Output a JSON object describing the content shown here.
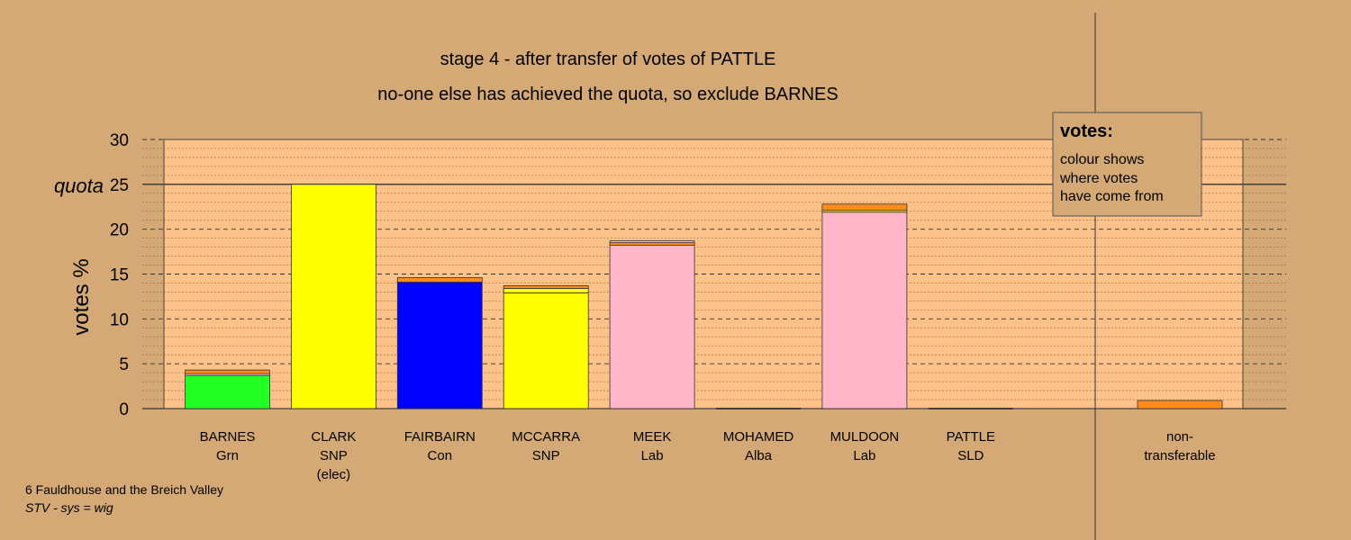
{
  "chart_data": {
    "type": "bar",
    "title": "stage 4 - after transfer of votes of PATTLE",
    "subtitle": "no-one else has achieved the quota, so exclude BARNES",
    "ylabel": "votes %",
    "ylim": [
      0,
      30
    ],
    "yticks": [
      0,
      5,
      10,
      15,
      20,
      25,
      30
    ],
    "quota": {
      "label": "quota",
      "value": 25
    },
    "grid": "dotted minor every 1, dashed major every 5",
    "candidates": [
      {
        "name": "BARNES",
        "party": "Grn",
        "extra": "",
        "segments": [
          {
            "source": "Grn",
            "value": 3.7,
            "color": "#22FF22"
          },
          {
            "source": "Lab",
            "value": 0.2,
            "color": "#FFB6C8"
          },
          {
            "source": "SLD",
            "value": 0.4,
            "color": "#FF8C1A"
          }
        ]
      },
      {
        "name": "CLARK",
        "party": "SNP",
        "extra": "(elec)",
        "segments": [
          {
            "source": "SNP",
            "value": 25.0,
            "color": "#FFFF00"
          }
        ]
      },
      {
        "name": "FAIRBAIRN",
        "party": "Con",
        "extra": "",
        "segments": [
          {
            "source": "Con",
            "value": 14.1,
            "color": "#0000FF"
          },
          {
            "source": "SLD",
            "value": 0.5,
            "color": "#FF8C1A"
          }
        ]
      },
      {
        "name": "MCCARRA",
        "party": "SNP",
        "extra": "",
        "segments": [
          {
            "source": "SNP",
            "value": 12.9,
            "color": "#FFFF00"
          },
          {
            "source": "SNP",
            "value": 0.5,
            "color": "#FFFF00"
          },
          {
            "source": "SLD",
            "value": 0.3,
            "color": "#FF8C1A"
          }
        ]
      },
      {
        "name": "MEEK",
        "party": "Lab",
        "extra": "",
        "segments": [
          {
            "source": "Lab",
            "value": 18.2,
            "color": "#FFB6C8"
          },
          {
            "source": "SLD",
            "value": 0.3,
            "color": "#FF8C1A"
          },
          {
            "source": "Lab",
            "value": 0.2,
            "color": "#FFB6C8"
          }
        ]
      },
      {
        "name": "MOHAMED",
        "party": "Alba",
        "extra": "",
        "segments": []
      },
      {
        "name": "MULDOON",
        "party": "Lab",
        "extra": "",
        "segments": [
          {
            "source": "Lab",
            "value": 21.9,
            "color": "#FFB6C8"
          },
          {
            "source": "SNP",
            "value": 0.2,
            "color": "#FFFF00"
          },
          {
            "source": "SLD",
            "value": 0.7,
            "color": "#FF8C1A"
          }
        ]
      },
      {
        "name": "PATTLE",
        "party": "SLD",
        "extra": "",
        "segments": []
      }
    ],
    "nontransferable": {
      "name": "non-",
      "party": "transferable",
      "extra": "",
      "segments": [
        {
          "source": "SLD",
          "value": 0.9,
          "color": "#FF8C1A"
        }
      ]
    },
    "legend": {
      "title": "votes:",
      "lines": [
        "colour shows",
        "where votes",
        "have come from"
      ],
      "placement": "top-right"
    }
  },
  "footer": {
    "line1": "6 Fauldhouse and the Breich Valley",
    "line2": "STV - sys = wig"
  },
  "colors": {
    "background": "#D4A976",
    "plot_area": "#FDC18A"
  }
}
